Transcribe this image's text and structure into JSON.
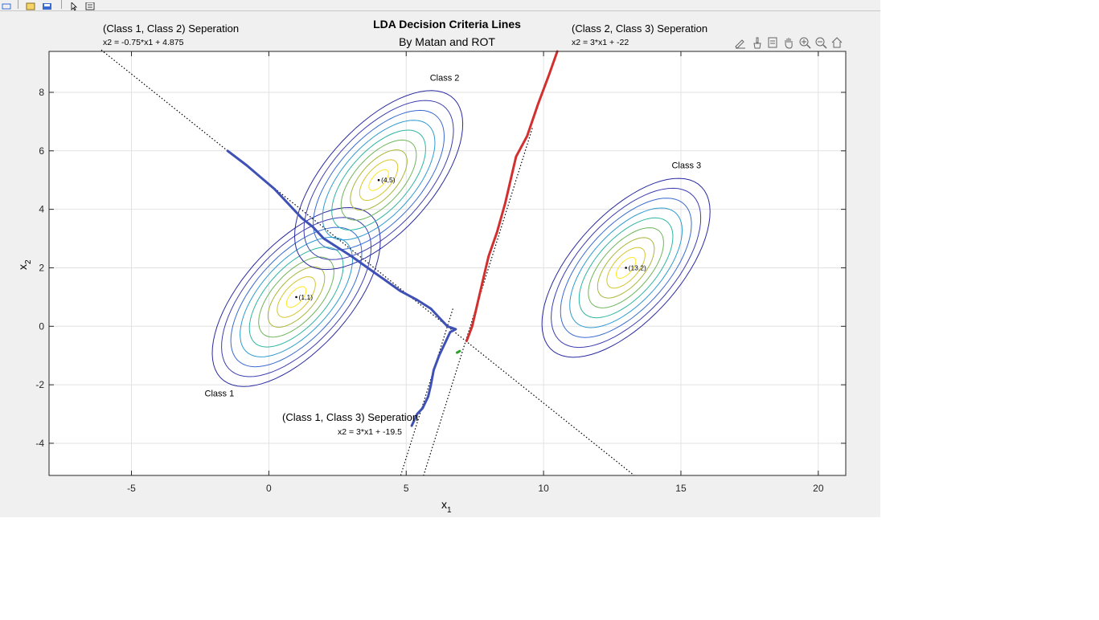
{
  "figure": {
    "title": "LDA Decision Criteria Lines",
    "subtitle": "By Matan and ROT",
    "background": "#f0f0f0"
  },
  "toolbar": {
    "buttons": [
      "link-icon",
      "new-figure-icon",
      "open-icon",
      "save-icon",
      "pointer-icon",
      "property-editor-icon"
    ]
  },
  "axes_toolbar": {
    "buttons": [
      "edit-plot-icon",
      "brush-icon",
      "datatip-icon",
      "pan-icon",
      "zoom-in-icon",
      "zoom-out-icon",
      "home-icon"
    ]
  },
  "annotations": {
    "sep12": {
      "title": "(Class 1, Class 2) Seperation",
      "equation": "x2 = -0.75*x1 + 4.875"
    },
    "sep23": {
      "title": "(Class 2, Class 3) Seperation",
      "equation": "x2 = 3*x1 + -22"
    },
    "sep13": {
      "title": "(Class 1, Class 3) Seperation",
      "equation": "x2 = 3*x1 + -19.5"
    }
  },
  "chart_data": {
    "type": "line",
    "title": "LDA Decision Criteria Lines",
    "subtitle": "By Matan and ROT",
    "xlabel": "x",
    "xlabel_sub": "1",
    "ylabel": "x",
    "ylabel_sub": "2",
    "xlim": [
      -8.0,
      21.0
    ],
    "ylim": [
      -5.1,
      9.4
    ],
    "xticks": [
      -5,
      0,
      5,
      10,
      15,
      20
    ],
    "xtick_labels": [
      "-5",
      "0",
      "5",
      "10",
      "15",
      "20"
    ],
    "yticks": [
      -4,
      -2,
      0,
      2,
      4,
      6,
      8
    ],
    "ytick_labels": [
      "-4",
      "-2",
      "0",
      "2",
      "4",
      "6",
      "8"
    ],
    "grid": true,
    "classes": [
      {
        "name": "Class 1",
        "mean": [
          1,
          1
        ],
        "mean_label": "(1,1)",
        "name_pos": [
          -1.8,
          -2.4
        ]
      },
      {
        "name": "Class 2",
        "mean": [
          4,
          5
        ],
        "mean_label": "(4,5)",
        "name_pos": [
          6.4,
          8.4
        ]
      },
      {
        "name": "Class 3",
        "mean": [
          13,
          2
        ],
        "mean_label": "(13,2)",
        "name_pos": [
          15.2,
          5.4
        ]
      }
    ],
    "contours": {
      "levels": 8,
      "radius_range": [
        0.35,
        3.0
      ],
      "axis_direction": [
        0.707,
        0.707
      ],
      "major_scale": 2.6,
      "minor_scale": 1.25,
      "colors": [
        "#fde725",
        "#d4c62c",
        "#a9b73a",
        "#6fb55b",
        "#2fb5a0",
        "#2f9bd0",
        "#3a6bd0",
        "#3d3fb0",
        "#2a2aa0"
      ]
    },
    "theoretical_lines": [
      {
        "name": "x2 = -0.75*x1 + 4.875",
        "slope": -0.75,
        "intercept": 4.875,
        "x_range": [
          -6.1,
          13.3
        ],
        "style": "dotted",
        "color": "#000000"
      },
      {
        "name": "x2 = 3*x1 + -22",
        "slope": 3,
        "intercept": -22,
        "x_range": [
          5.63,
          9.6
        ],
        "style": "dotted",
        "color": "#000000"
      },
      {
        "name": "x2 = 3*x1 + -19.5",
        "slope": 3,
        "intercept": -19.5,
        "x_range": [
          4.8,
          6.7
        ],
        "style": "dotted",
        "color": "#000000"
      }
    ],
    "empirical_boundaries": [
      {
        "name": "Class 1 / Class 2 empirical",
        "color": "#3f51b5",
        "x": [
          -1.5,
          -0.8,
          -0.3,
          0.2,
          0.8,
          1.2,
          1.6,
          2.0,
          2.5,
          3.0,
          3.6,
          4.2,
          4.8,
          5.4,
          5.9,
          6.2,
          6.5,
          6.8
        ],
        "y": [
          6.0,
          5.5,
          5.1,
          4.7,
          4.1,
          3.7,
          3.4,
          3.0,
          2.7,
          2.4,
          2.0,
          1.6,
          1.2,
          0.9,
          0.6,
          0.3,
          0.0,
          -0.1
        ]
      },
      {
        "name": "Class 1 / Class 3 empirical",
        "color": "#3f51b5",
        "x": [
          6.8,
          6.6,
          6.4,
          6.2,
          6.0,
          5.9,
          5.8,
          5.6,
          5.4,
          5.2
        ],
        "y": [
          -0.1,
          -0.2,
          -0.6,
          -1.0,
          -1.5,
          -2.0,
          -2.4,
          -2.8,
          -3.0,
          -3.4
        ]
      },
      {
        "name": "Class 2 / Class 3 empirical",
        "color": "#d22f2f",
        "x": [
          7.2,
          7.4,
          7.6,
          7.8,
          8.0,
          8.3,
          8.6,
          8.8,
          9.0,
          9.4,
          9.8,
          10.2,
          10.5
        ],
        "y": [
          -0.5,
          0.0,
          0.8,
          1.6,
          2.4,
          3.2,
          4.2,
          5.0,
          5.8,
          6.5,
          7.6,
          8.6,
          9.4
        ]
      },
      {
        "name": "small green fragment",
        "color": "#2ca02c",
        "x": [
          6.85,
          6.95
        ],
        "y": [
          -0.9,
          -0.85
        ]
      }
    ]
  }
}
